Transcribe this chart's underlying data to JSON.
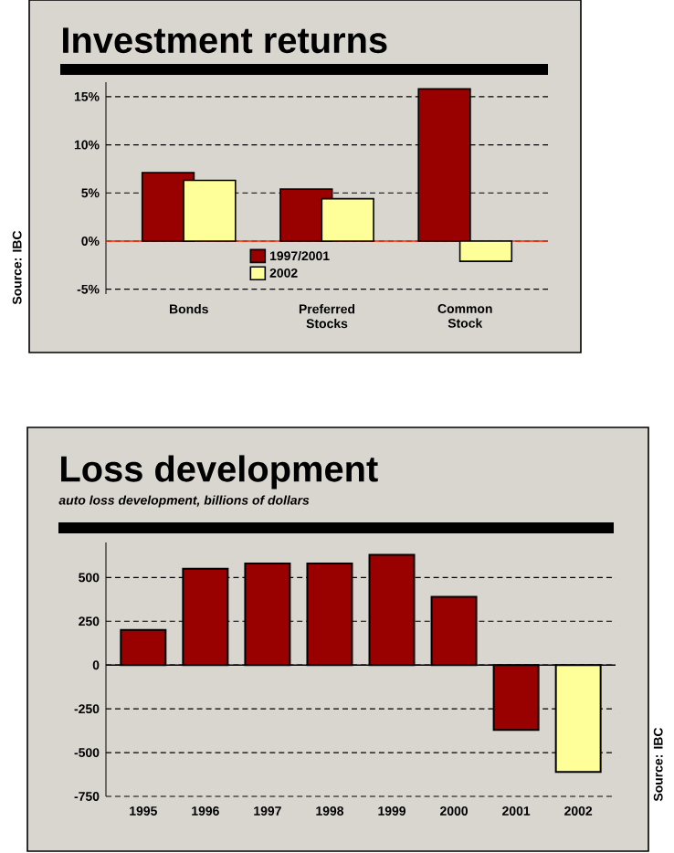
{
  "chart_data": [
    {
      "type": "bar",
      "title": "Investment returns",
      "categories": [
        "Bonds",
        "Preferred Stocks",
        "Common Stock"
      ],
      "series": [
        {
          "name": "1997/2001",
          "color": "#990000",
          "values": [
            7.1,
            5.4,
            15.8
          ]
        },
        {
          "name": "2002",
          "color": "#ffff99",
          "values": [
            6.3,
            4.4,
            -2.1
          ]
        }
      ],
      "ylim": [
        -5.5,
        16.5
      ],
      "yticks": [
        {
          "value": -5,
          "label": "-5%"
        },
        {
          "value": 0,
          "label": "0%"
        },
        {
          "value": 5,
          "label": "5%"
        },
        {
          "value": 10,
          "label": "10%"
        },
        {
          "value": 15,
          "label": "15%"
        }
      ],
      "ref_lines": [
        {
          "axis": "y",
          "value": 0,
          "color": "#ff2600"
        }
      ],
      "grid": "y",
      "legend": "bottom",
      "annotations": [
        "Source: IBC"
      ]
    },
    {
      "type": "bar",
      "title": "Loss development",
      "subtitle": "auto loss development, billions of dollars",
      "categories": [
        "1995",
        "1996",
        "1997",
        "1998",
        "1999",
        "2000",
        "2001",
        "2002"
      ],
      "values": [
        200,
        550,
        580,
        580,
        630,
        390,
        -370,
        -610
      ],
      "colors": [
        "#990000",
        "#990000",
        "#990000",
        "#990000",
        "#990000",
        "#990000",
        "#990000",
        "#ffff99"
      ],
      "ylim": [
        -750,
        700
      ],
      "yticks": [
        -750,
        -500,
        -250,
        0,
        250,
        500
      ],
      "ref_lines": [
        {
          "axis": "y",
          "value": 0,
          "color": "#000000"
        }
      ],
      "grid": "y",
      "annotations": [
        "Source: IBC"
      ]
    }
  ]
}
